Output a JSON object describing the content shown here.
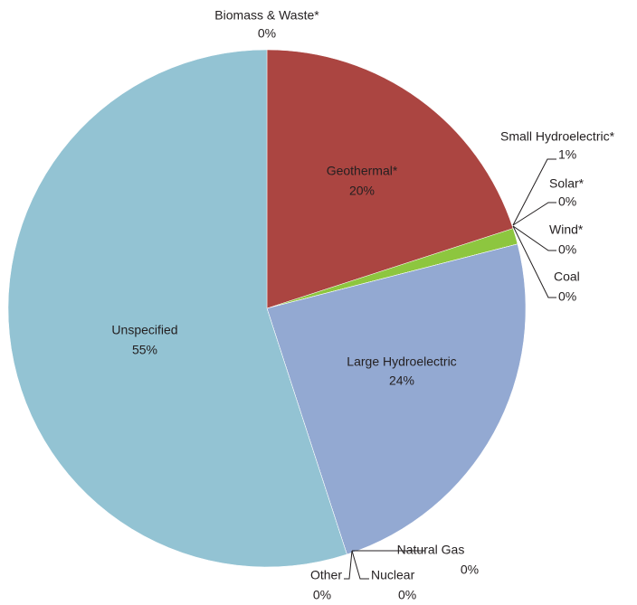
{
  "chart_data": {
    "type": "pie",
    "categories": [
      "Biomass & Waste*",
      "Geothermal*",
      "Small Hydroelectric*",
      "Solar*",
      "Wind*",
      "Coal",
      "Large Hydroelectric",
      "Natural Gas",
      "Nuclear",
      "Other",
      "Unspecified"
    ],
    "values": [
      0,
      20,
      1,
      0,
      0,
      0,
      24,
      0,
      0,
      0,
      55
    ],
    "value_labels": [
      "0%",
      "20%",
      "1%",
      "0%",
      "0%",
      "0%",
      "24%",
      "0%",
      "0%",
      "0%",
      "55%"
    ],
    "colors": [
      "#6b8e3a",
      "#ab4541",
      "#8dc63f",
      "#f2c230",
      "#5b8fc9",
      "#555555",
      "#93a9d2",
      "#c98ac0",
      "#f5a35c",
      "#e8877a",
      "#93c3d3"
    ]
  }
}
